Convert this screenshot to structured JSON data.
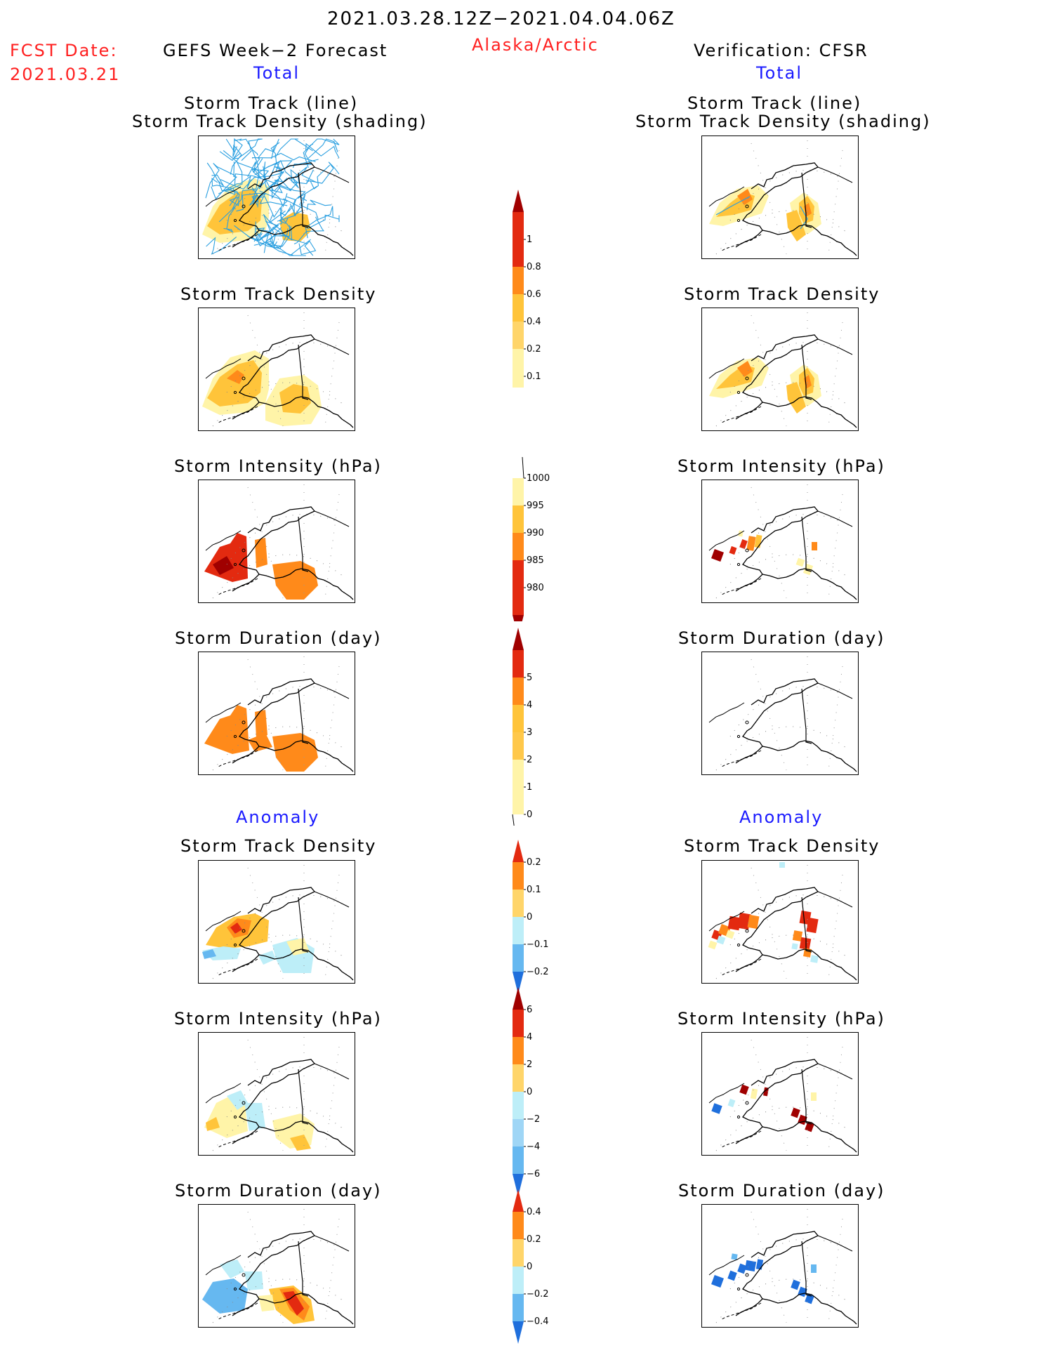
{
  "header": {
    "date_range": "2021.03.28.12Z−2021.04.04.06Z",
    "fcst_label": "FCST Date:",
    "fcst_date": "2021.03.21",
    "left_title": "GEFS Week−2 Forecast",
    "region": "Alaska/Arctic",
    "right_title": "Verification: CFSR",
    "left_total": "Total",
    "right_total": "Total",
    "left_anomaly": "Anomaly",
    "right_anomaly": "Anomaly"
  },
  "panels": {
    "p1_line1": "Storm Track (line)",
    "p1_line2": "Storm Track Density (shading)",
    "p2": "Storm Track Density",
    "p3": "Storm Intensity (hPa)",
    "p4": "Storm Duration (day)",
    "p5": "Storm Track Density",
    "p6": "Storm Intensity (hPa)",
    "p7": "Storm Duration (day)"
  },
  "colorbars": {
    "density": [
      "1",
      "0.8",
      "0.6",
      "0.4",
      "0.2",
      "0.1"
    ],
    "intensity": [
      "1000",
      "995",
      "990",
      "985",
      "980"
    ],
    "duration": [
      "5",
      "4",
      "3",
      "2",
      "1",
      "0"
    ],
    "density_anom": [
      "0.2",
      "0.1",
      "0",
      "−0.1",
      "−0.2"
    ],
    "intensity_anom": [
      "6",
      "4",
      "2",
      "0",
      "−2",
      "−4",
      "−6"
    ],
    "duration_anom": [
      "0.4",
      "0.2",
      "0",
      "−0.2",
      "−0.4"
    ]
  },
  "colors": {
    "title_red": "#ff2020",
    "title_blue": "#1a1aff",
    "track_line": "#2a9fe0",
    "shade_light": "#fff4a8",
    "shade_mid": "#ffc43a",
    "shade_orange": "#ff8a1a",
    "shade_red": "#e32a10",
    "shade_dark": "#a00000",
    "neg_light": "#bdeef8",
    "neg_mid": "#66b8f0",
    "neg_dark": "#1f6fdc"
  }
}
